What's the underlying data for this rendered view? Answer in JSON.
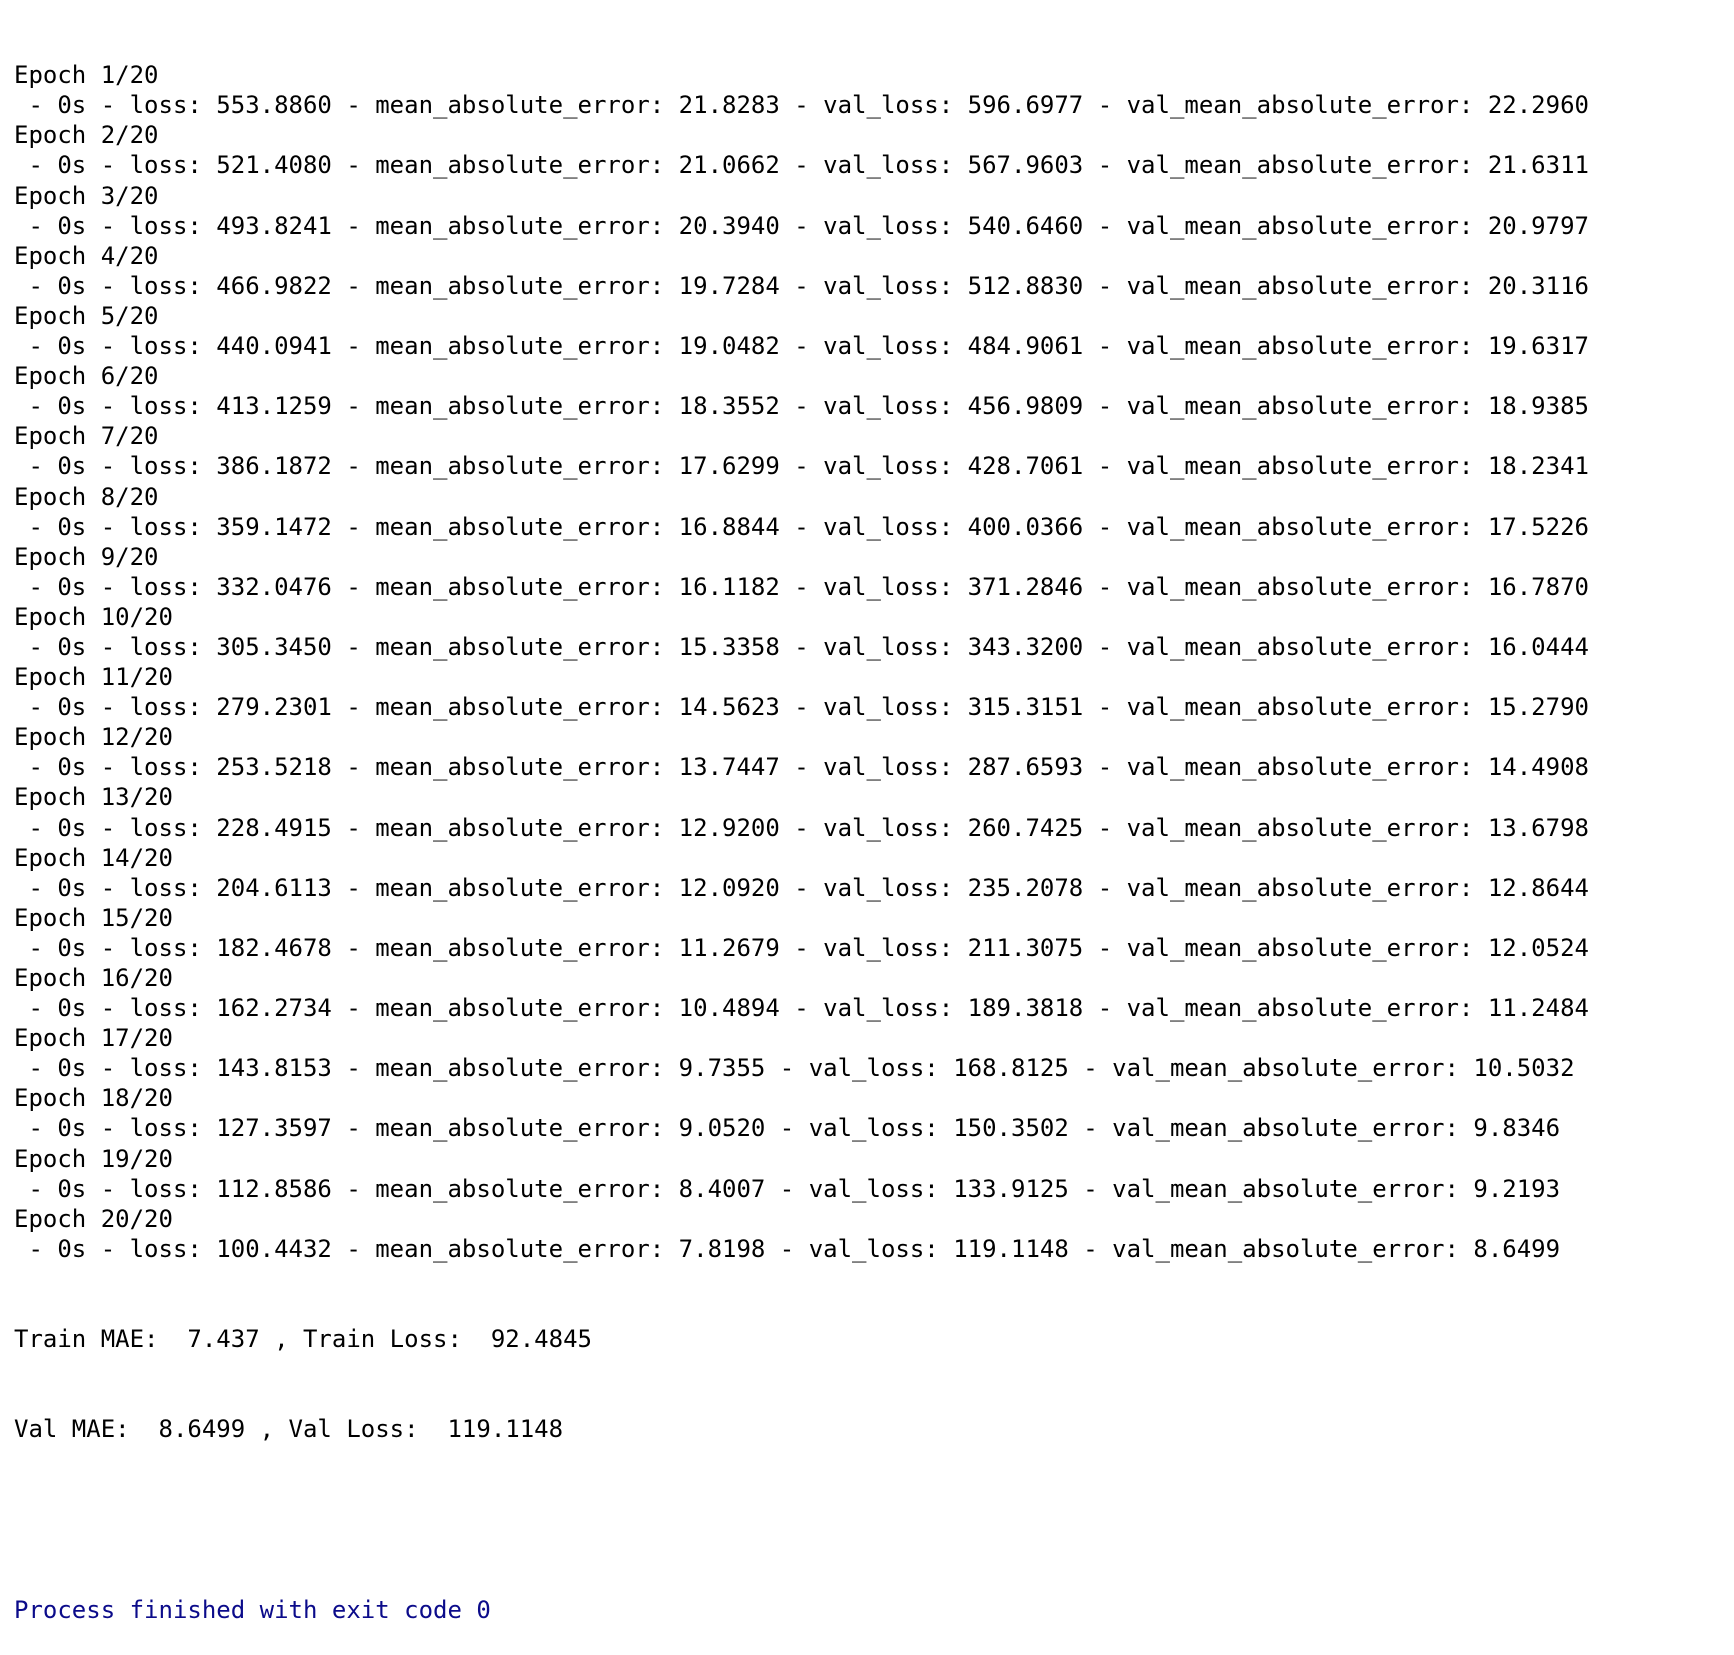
{
  "console": {
    "epochs": [
      {
        "header": "Epoch 1/20",
        "metrics": " - 0s - loss: 553.8860 - mean_absolute_error: 21.8283 - val_loss: 596.6977 - val_mean_absolute_error: 22.2960"
      },
      {
        "header": "Epoch 2/20",
        "metrics": " - 0s - loss: 521.4080 - mean_absolute_error: 21.0662 - val_loss: 567.9603 - val_mean_absolute_error: 21.6311"
      },
      {
        "header": "Epoch 3/20",
        "metrics": " - 0s - loss: 493.8241 - mean_absolute_error: 20.3940 - val_loss: 540.6460 - val_mean_absolute_error: 20.9797"
      },
      {
        "header": "Epoch 4/20",
        "metrics": " - 0s - loss: 466.9822 - mean_absolute_error: 19.7284 - val_loss: 512.8830 - val_mean_absolute_error: 20.3116"
      },
      {
        "header": "Epoch 5/20",
        "metrics": " - 0s - loss: 440.0941 - mean_absolute_error: 19.0482 - val_loss: 484.9061 - val_mean_absolute_error: 19.6317"
      },
      {
        "header": "Epoch 6/20",
        "metrics": " - 0s - loss: 413.1259 - mean_absolute_error: 18.3552 - val_loss: 456.9809 - val_mean_absolute_error: 18.9385"
      },
      {
        "header": "Epoch 7/20",
        "metrics": " - 0s - loss: 386.1872 - mean_absolute_error: 17.6299 - val_loss: 428.7061 - val_mean_absolute_error: 18.2341"
      },
      {
        "header": "Epoch 8/20",
        "metrics": " - 0s - loss: 359.1472 - mean_absolute_error: 16.8844 - val_loss: 400.0366 - val_mean_absolute_error: 17.5226"
      },
      {
        "header": "Epoch 9/20",
        "metrics": " - 0s - loss: 332.0476 - mean_absolute_error: 16.1182 - val_loss: 371.2846 - val_mean_absolute_error: 16.7870"
      },
      {
        "header": "Epoch 10/20",
        "metrics": " - 0s - loss: 305.3450 - mean_absolute_error: 15.3358 - val_loss: 343.3200 - val_mean_absolute_error: 16.0444"
      },
      {
        "header": "Epoch 11/20",
        "metrics": " - 0s - loss: 279.2301 - mean_absolute_error: 14.5623 - val_loss: 315.3151 - val_mean_absolute_error: 15.2790"
      },
      {
        "header": "Epoch 12/20",
        "metrics": " - 0s - loss: 253.5218 - mean_absolute_error: 13.7447 - val_loss: 287.6593 - val_mean_absolute_error: 14.4908"
      },
      {
        "header": "Epoch 13/20",
        "metrics": " - 0s - loss: 228.4915 - mean_absolute_error: 12.9200 - val_loss: 260.7425 - val_mean_absolute_error: 13.6798"
      },
      {
        "header": "Epoch 14/20",
        "metrics": " - 0s - loss: 204.6113 - mean_absolute_error: 12.0920 - val_loss: 235.2078 - val_mean_absolute_error: 12.8644"
      },
      {
        "header": "Epoch 15/20",
        "metrics": " - 0s - loss: 182.4678 - mean_absolute_error: 11.2679 - val_loss: 211.3075 - val_mean_absolute_error: 12.0524"
      },
      {
        "header": "Epoch 16/20",
        "metrics": " - 0s - loss: 162.2734 - mean_absolute_error: 10.4894 - val_loss: 189.3818 - val_mean_absolute_error: 11.2484"
      },
      {
        "header": "Epoch 17/20",
        "metrics": " - 0s - loss: 143.8153 - mean_absolute_error: 9.7355 - val_loss: 168.8125 - val_mean_absolute_error: 10.5032"
      },
      {
        "header": "Epoch 18/20",
        "metrics": " - 0s - loss: 127.3597 - mean_absolute_error: 9.0520 - val_loss: 150.3502 - val_mean_absolute_error: 9.8346"
      },
      {
        "header": "Epoch 19/20",
        "metrics": " - 0s - loss: 112.8586 - mean_absolute_error: 8.4007 - val_loss: 133.9125 - val_mean_absolute_error: 9.2193"
      },
      {
        "header": "Epoch 20/20",
        "metrics": " - 0s - loss: 100.4432 - mean_absolute_error: 7.8198 - val_loss: 119.1148 - val_mean_absolute_error: 8.6499"
      }
    ],
    "summary": {
      "train": "Train MAE:  7.437 , Train Loss:  92.4845",
      "val": "Val MAE:  8.6499 , Val Loss:  119.1148"
    },
    "exit_message": "Process finished with exit code 0",
    "colors": {
      "text": "#000000",
      "exit_text": "#0b0b8a",
      "background": "#ffffff"
    }
  }
}
